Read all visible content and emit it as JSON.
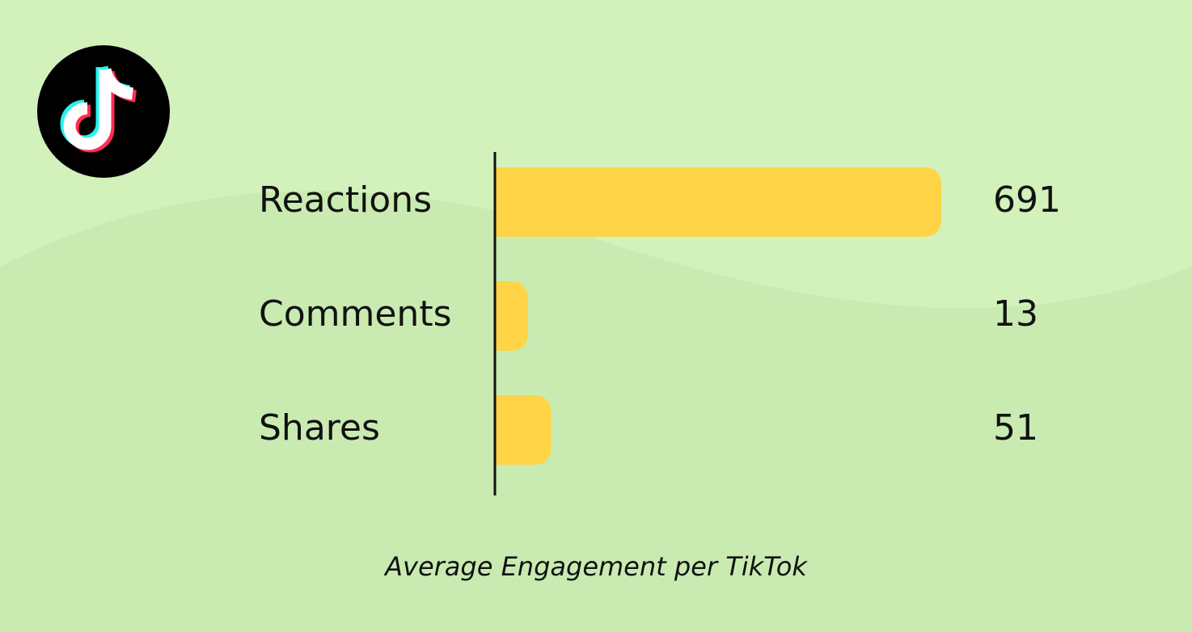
{
  "chart_data": {
    "type": "bar",
    "title": "Average Engagement per TikTok",
    "categories": [
      "Reactions",
      "Comments",
      "Shares"
    ],
    "values": [
      691,
      13,
      51
    ],
    "color": "#ffd447"
  }
}
